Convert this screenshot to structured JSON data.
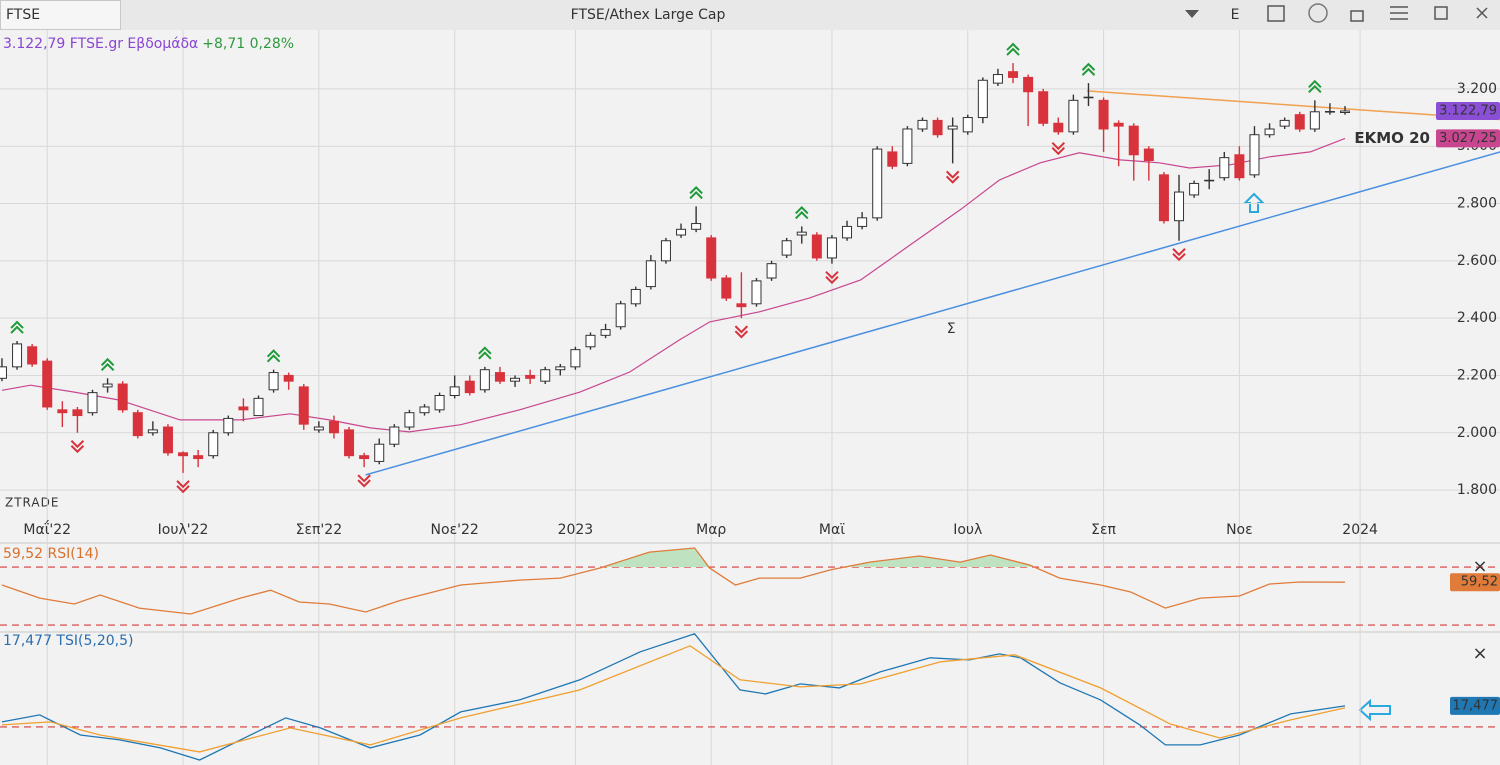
{
  "toolbar": {
    "tab": "FTSE",
    "title": "FTSE/Athex Large Cap",
    "button": "E"
  },
  "watermark": "ZTRADE",
  "chart_data": [
    {
      "type": "candlestick",
      "title": "3.122,79 FTSE.gr Εβδομάδα",
      "subtitle": "+8,71 0,28%",
      "title_color": "#8a45d2",
      "subtitle_color": "#2e9a3e",
      "x": [
        0,
        1,
        2,
        3,
        4,
        5,
        6,
        7,
        8,
        9,
        10,
        11,
        12,
        13,
        14,
        15,
        16,
        17,
        18,
        19,
        20,
        21,
        22,
        23,
        24,
        25,
        26,
        27,
        28,
        29,
        30,
        31,
        32,
        33,
        34,
        35,
        36,
        37,
        38,
        39,
        40,
        41,
        42,
        43,
        44,
        45,
        46,
        47,
        48,
        49,
        50,
        51,
        52,
        53,
        54,
        55,
        56,
        57,
        58,
        59,
        60,
        61,
        62,
        63,
        64,
        65,
        66,
        67,
        68,
        69,
        70,
        71,
        72,
        73,
        74,
        75,
        76,
        77,
        78,
        79,
        80,
        81,
        82,
        83,
        84,
        85,
        86,
        87,
        88,
        89
      ],
      "open": [
        2190,
        2230,
        2300,
        2250,
        2080,
        2080,
        2070,
        2160,
        2170,
        2070,
        2000,
        2020,
        1930,
        1920,
        1920,
        2000,
        2090,
        2060,
        2150,
        2200,
        2160,
        2010,
        2040,
        2010,
        1920,
        1900,
        1960,
        2020,
        2070,
        2080,
        2130,
        2180,
        2150,
        2210,
        2180,
        2200,
        2180,
        2220,
        2230,
        2300,
        2340,
        2370,
        2450,
        2510,
        2600,
        2690,
        2710,
        2680,
        2540,
        2450,
        2450,
        2540,
        2620,
        2690,
        2690,
        2610,
        2680,
        2720,
        2750,
        2980,
        2940,
        3060,
        3090,
        3060,
        3050,
        3100,
        3220,
        3260,
        3240,
        3190,
        3080,
        3050,
        3170,
        3160,
        3080,
        3070,
        2990,
        2900,
        2740,
        2830,
        2880,
        2890,
        2970,
        2900,
        3040,
        3070,
        3110,
        3060,
        3120,
        3120
      ],
      "high": [
        2260,
        2320,
        2310,
        2260,
        2110,
        2090,
        2150,
        2190,
        2180,
        2080,
        2040,
        2030,
        1935,
        1940,
        2010,
        2060,
        2120,
        2130,
        2220,
        2210,
        2170,
        2040,
        2060,
        2020,
        1930,
        1980,
        2030,
        2080,
        2100,
        2140,
        2200,
        2200,
        2230,
        2230,
        2200,
        2220,
        2230,
        2240,
        2300,
        2350,
        2380,
        2460,
        2510,
        2620,
        2680,
        2730,
        2790,
        2690,
        2550,
        2560,
        2540,
        2600,
        2680,
        2720,
        2700,
        2690,
        2740,
        2770,
        3000,
        3000,
        3070,
        3100,
        3100,
        3100,
        3110,
        3240,
        3270,
        3290,
        3250,
        3200,
        3100,
        3180,
        3220,
        3170,
        3090,
        3080,
        3000,
        2910,
        2900,
        2880,
        2920,
        2980,
        3000,
        3070,
        3080,
        3100,
        3120,
        3160,
        3150,
        3140
      ],
      "low": [
        2180,
        2220,
        2230,
        2080,
        2020,
        2000,
        2060,
        2140,
        2070,
        1980,
        1990,
        1920,
        1860,
        1880,
        1910,
        1990,
        2040,
        2060,
        2140,
        2150,
        2010,
        2000,
        1980,
        1910,
        1880,
        1890,
        1950,
        2010,
        2060,
        2070,
        2120,
        2130,
        2140,
        2170,
        2160,
        2170,
        2170,
        2200,
        2220,
        2290,
        2330,
        2360,
        2440,
        2500,
        2590,
        2680,
        2700,
        2530,
        2460,
        2400,
        2440,
        2530,
        2610,
        2660,
        2600,
        2590,
        2670,
        2710,
        2740,
        2920,
        2930,
        3050,
        3030,
        2940,
        3040,
        3080,
        3210,
        3220,
        3070,
        3070,
        3040,
        3040,
        3140,
        2980,
        2930,
        2880,
        2880,
        2730,
        2670,
        2820,
        2850,
        2880,
        2880,
        2890,
        3030,
        3060,
        3050,
        3050,
        3110,
        3110
      ],
      "close": [
        2230,
        2310,
        2240,
        2090,
        2070,
        2060,
        2140,
        2170,
        2080,
        1990,
        2010,
        1930,
        1920,
        1910,
        2000,
        2050,
        2080,
        2120,
        2210,
        2180,
        2030,
        2020,
        2000,
        1920,
        1910,
        1960,
        2020,
        2070,
        2090,
        2130,
        2160,
        2140,
        2220,
        2180,
        2190,
        2190,
        2220,
        2230,
        2290,
        2340,
        2360,
        2450,
        2500,
        2600,
        2670,
        2710,
        2730,
        2540,
        2470,
        2440,
        2530,
        2590,
        2670,
        2700,
        2610,
        2680,
        2720,
        2750,
        2990,
        2930,
        3060,
        3090,
        3040,
        3070,
        3100,
        3230,
        3250,
        3240,
        3190,
        3080,
        3050,
        3160,
        3170,
        3060,
        3070,
        2970,
        2950,
        2740,
        2840,
        2870,
        2880,
        2960,
        2890,
        3040,
        3060,
        3090,
        3060,
        3120,
        3120,
        3122.79
      ],
      "up_color": "#ffffff",
      "down_color": "#d8323c",
      "close_color": "#8b4fd6",
      "last_label": "3.122,79",
      "up_signals": [
        1,
        7,
        18,
        32,
        46,
        53,
        67,
        72,
        87
      ],
      "down_signals": [
        5,
        12,
        24,
        49,
        55,
        63,
        70,
        78
      ],
      "up_signal_color": "#1f9a3a",
      "down_signal_color": "#d8323c",
      "series": [
        {
          "name": "ΕΚΜΟ 20",
          "color": "#c8468f",
          "last_label": "3.027,25",
          "x": [
            0,
            1.9,
            4.8,
            7.8,
            11.8,
            15.8,
            19.1,
            21.7,
            24.4,
            27,
            30.4,
            34.3,
            38.3,
            41.6,
            44.9,
            46.9,
            50.2,
            53.5,
            56.9,
            60.2,
            63.5,
            66.1,
            68.8,
            71.4,
            74.1,
            76.7,
            78.7,
            81.4,
            84,
            86.7,
            89
          ],
          "values": [
            2148,
            2166,
            2142,
            2114,
            2045,
            2045,
            2066,
            2045,
            2017,
            2003,
            2028,
            2080,
            2142,
            2212,
            2324,
            2387,
            2422,
            2470,
            2533,
            2656,
            2778,
            2882,
            2942,
            2977,
            2952,
            2942,
            2924,
            2935,
            2963,
            2980,
            3027.25
          ]
        }
      ],
      "trendlines": [
        {
          "color": "#f0a050",
          "x": [
            71.9,
            99.27
          ],
          "values": [
            3193,
            3093
          ]
        },
        {
          "color": "#4a8fe0",
          "x": [
            24.1,
            99.27
          ],
          "values": [
            1853,
            2980
          ]
        }
      ],
      "annotations": [
        {
          "text": "Σ",
          "x": 62.9,
          "y": 2362,
          "color": "#4a6fd0"
        }
      ],
      "xlim": [
        -0.13,
        99.27
      ],
      "ylim": [
        1713,
        3388
      ],
      "xticks": [
        {
          "value": 3,
          "label": "Μαΐ'22"
        },
        {
          "value": 12,
          "label": "Ιουλ'22"
        },
        {
          "value": 21,
          "label": "Σεπ'22"
        },
        {
          "value": 30,
          "label": "Νοε'22"
        },
        {
          "value": 38,
          "label": "2023"
        },
        {
          "value": 47,
          "label": "Μαρ"
        },
        {
          "value": 55,
          "label": "Μαϊ"
        },
        {
          "value": 64,
          "label": "Ιουλ"
        },
        {
          "value": 73,
          "label": "Σεπ"
        },
        {
          "value": 82,
          "label": "Νοε"
        },
        {
          "value": 90,
          "label": "2024"
        }
      ],
      "yticks": [
        {
          "value": 1800,
          "label": "1.800"
        },
        {
          "value": 2000,
          "label": "2.000"
        },
        {
          "value": 2200,
          "label": "2.200"
        },
        {
          "value": 2400,
          "label": "2.400"
        },
        {
          "value": 2600,
          "label": "2.600"
        },
        {
          "value": 2800,
          "label": "2.800"
        },
        {
          "value": 3000,
          "label": "3.000"
        },
        {
          "value": 3200,
          "label": "3.200"
        }
      ],
      "grid": true
    },
    {
      "type": "line",
      "title": "59,52 RSI(14)",
      "title_color": "#d9702c",
      "close_button": "×",
      "levels": [
        70,
        30
      ],
      "level_color": "#d83a3a",
      "fill_above": "#bfe3c0",
      "xlim": [
        -0.13,
        99.27
      ],
      "ylim": [
        25.2,
        85.2
      ],
      "series": [
        {
          "color": "#e07b39",
          "last_label": "59,52",
          "x": [
            0,
            2.5,
            4.8,
            6.5,
            9.1,
            12.5,
            15.8,
            17.8,
            19.7,
            21.7,
            24.1,
            26.4,
            30.4,
            34.3,
            37,
            39.6,
            42.9,
            45.9,
            46.9,
            48.6,
            50.2,
            52.9,
            54.9,
            57.5,
            60.8,
            63.5,
            65.5,
            68.1,
            70.1,
            72.8,
            74.8,
            77.1,
            79.4,
            82,
            84,
            86,
            89
          ],
          "values": [
            57.6,
            48.6,
            44.5,
            50.7,
            41.7,
            37.6,
            48.6,
            54,
            45.9,
            44.5,
            39,
            47,
            57.6,
            61,
            62.4,
            69.3,
            80.3,
            83.1,
            69.3,
            57.6,
            62.4,
            62.4,
            68,
            73.4,
            77.6,
            73.4,
            78.3,
            71.4,
            62.4,
            57.6,
            52.8,
            41.7,
            48.6,
            50,
            58.3,
            59.7,
            59.52
          ]
        }
      ]
    },
    {
      "type": "line",
      "title": "17,477 TSI(5,20,5)",
      "title_color": "#2a6fb0",
      "close_button": "×",
      "levels": [
        0
      ],
      "level_color": "#d83a3a",
      "xlim": [
        -0.13,
        99.27
      ],
      "ylim": [
        -31.7,
        79
      ],
      "series": [
        {
          "color": "#1f77b4",
          "last_label": "17,477",
          "x": [
            0,
            2.5,
            5.2,
            7.8,
            10.5,
            13.1,
            15.8,
            18.8,
            21.1,
            24.4,
            27.7,
            30.4,
            34.3,
            38.3,
            42.3,
            45.9,
            48.9,
            50.6,
            52.9,
            55.5,
            58.2,
            61.5,
            64.1,
            66.1,
            67.5,
            70.1,
            72.8,
            75.4,
            77.1,
            79.4,
            82,
            85.4,
            89
          ],
          "values": [
            4.2,
            10,
            -6.7,
            -10.8,
            -17.5,
            -27.5,
            -10.8,
            7.5,
            -0.8,
            -17.5,
            -6.7,
            12.5,
            22.5,
            39.2,
            62.5,
            77.5,
            30.8,
            27.5,
            35.8,
            32.5,
            45.8,
            57.5,
            55.8,
            60.8,
            57.5,
            36.7,
            22.5,
            1.7,
            -15,
            -15,
            -6.7,
            10.8,
            17.477
          ]
        },
        {
          "color": "#f0a030",
          "x": [
            0,
            3.2,
            6.5,
            13.1,
            19.1,
            24.4,
            30.4,
            38.3,
            45.6,
            48.9,
            52.9,
            56.9,
            62.2,
            67.1,
            72.8,
            77.4,
            80.7,
            85.4,
            89
          ],
          "values": [
            1.7,
            4.2,
            -6.7,
            -20.8,
            -0.8,
            -15,
            7.5,
            30.8,
            67.5,
            39.2,
            33.3,
            35.8,
            54.2,
            60,
            32.5,
            2.5,
            -9.2,
            5.8,
            15.8
          ]
        }
      ]
    }
  ]
}
